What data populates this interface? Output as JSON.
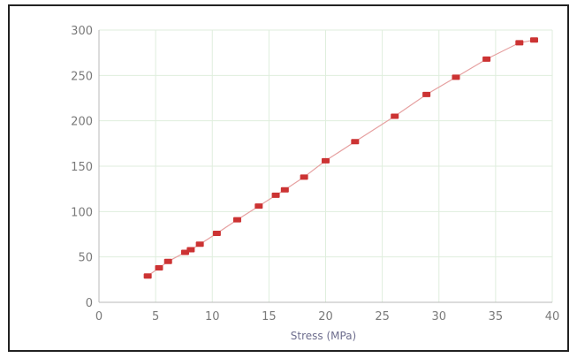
{
  "chart_data": {
    "type": "scatter",
    "title": "",
    "xlabel": "Stress (MPa)",
    "ylabel": "",
    "xlim": [
      0,
      40
    ],
    "ylim": [
      0,
      300
    ],
    "xticks": [
      0,
      5,
      10,
      15,
      20,
      25,
      30,
      35,
      40
    ],
    "yticks": [
      0,
      50,
      100,
      150,
      200,
      250,
      300
    ],
    "xtick_labels": [
      "0",
      "5",
      "10",
      "15",
      "20",
      "25",
      "30",
      "35",
      "40"
    ],
    "ytick_labels": [
      "0",
      "50",
      "100",
      "150",
      "200",
      "250",
      "300"
    ],
    "grid": true,
    "legend": "none",
    "series": [
      {
        "color": "#cc3333",
        "line_color": "#e6a0a0",
        "connected": true,
        "x": [
          4.3,
          5.3,
          6.1,
          7.6,
          8.1,
          8.9,
          10.4,
          12.2,
          14.1,
          15.6,
          16.4,
          18.1,
          20.0,
          22.6,
          26.1,
          28.9,
          31.5,
          34.2,
          37.1,
          38.4
        ],
        "y": [
          29,
          38,
          45,
          55,
          58,
          64,
          76,
          91,
          106,
          118,
          124,
          138,
          156,
          177,
          205,
          229,
          248,
          268,
          286,
          289
        ]
      }
    ]
  }
}
